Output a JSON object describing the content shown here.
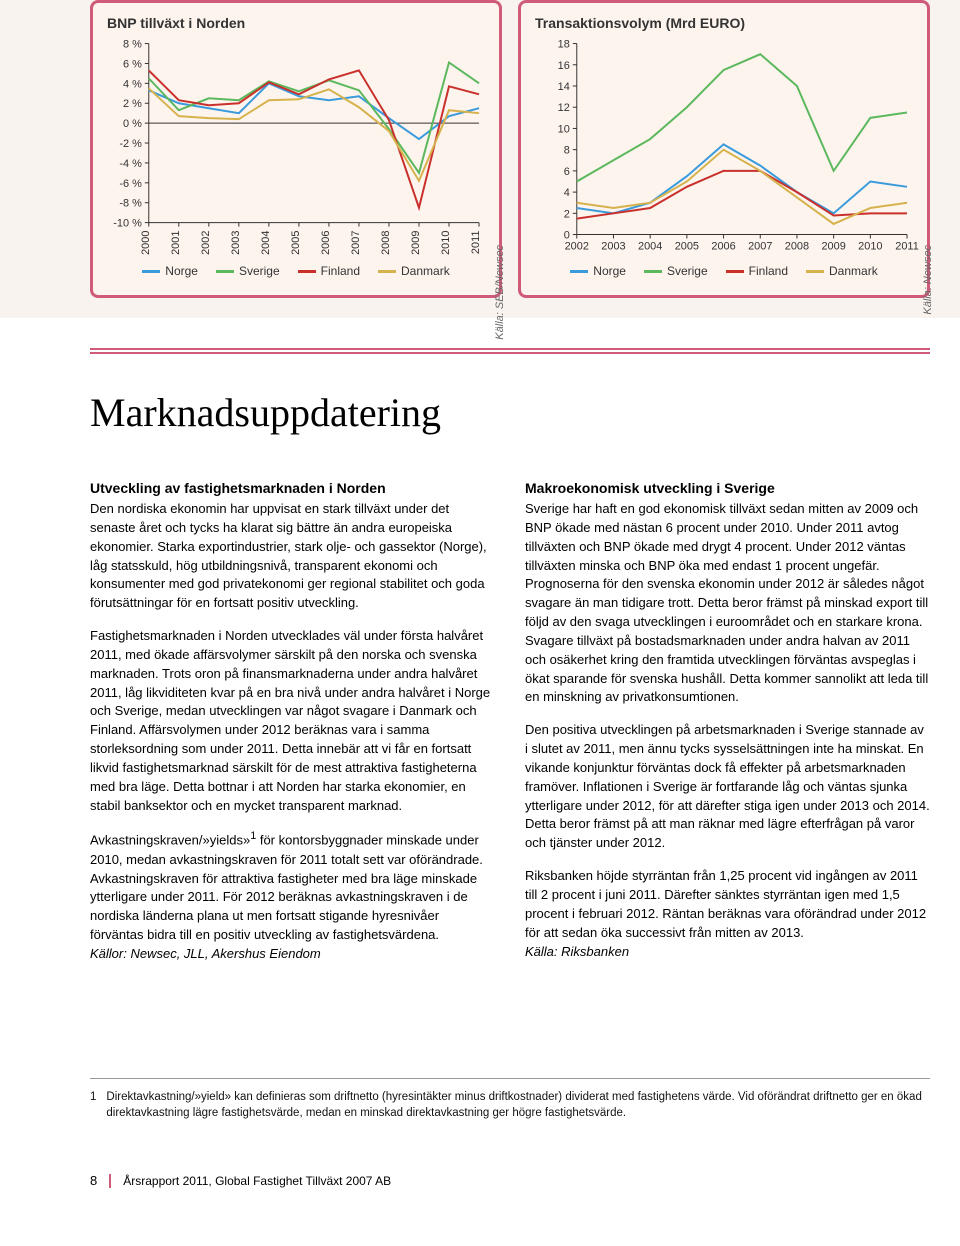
{
  "chart1": {
    "title": "BNP tillväxt i Norden",
    "type": "line",
    "source_label": "Källa: SEB/Newsec",
    "background_color": "#fdf4ee",
    "border_color": "#d05b78",
    "y": {
      "min": -10,
      "max": 8,
      "step": 2,
      "suffix": " %",
      "ticks": [
        8,
        6,
        4,
        2,
        0,
        -2,
        -4,
        -6,
        -8,
        -10
      ]
    },
    "x": {
      "labels": [
        "2000",
        "2001",
        "2002",
        "2003",
        "2004",
        "2005",
        "2006",
        "2007",
        "2008",
        "2009",
        "2010",
        "2011"
      ]
    },
    "series": [
      {
        "name": "Norge",
        "color": "#3a9bdc",
        "values": [
          3.3,
          2.0,
          1.5,
          1.0,
          4.0,
          2.7,
          2.3,
          2.7,
          0.5,
          -1.6,
          0.7,
          1.5
        ]
      },
      {
        "name": "Sverige",
        "color": "#5cb85c",
        "values": [
          4.5,
          1.3,
          2.5,
          2.3,
          4.2,
          3.2,
          4.3,
          3.3,
          -0.6,
          -5.0,
          6.1,
          4.0
        ]
      },
      {
        "name": "Finland",
        "color": "#c9302c",
        "values": [
          5.3,
          2.3,
          1.8,
          2.0,
          4.1,
          2.9,
          4.4,
          5.3,
          0.3,
          -8.5,
          3.7,
          2.9
        ]
      },
      {
        "name": "Danmark",
        "color": "#d6b24c",
        "values": [
          3.5,
          0.7,
          0.5,
          0.4,
          2.3,
          2.4,
          3.4,
          1.6,
          -0.8,
          -5.8,
          1.3,
          1.0
        ]
      }
    ],
    "grid_color": "#bfbfbf",
    "axis_fontsize": 11,
    "line_width": 2
  },
  "chart2": {
    "title": "Transaktionsvolym (Mrd EURO)",
    "type": "line",
    "source_label": "Källa: Newsec",
    "background_color": "#fdf4ee",
    "border_color": "#d05b78",
    "y": {
      "min": 0,
      "max": 18,
      "step": 2,
      "ticks": [
        18,
        16,
        14,
        12,
        10,
        8,
        6,
        4,
        2,
        0
      ]
    },
    "x": {
      "labels": [
        "2002",
        "2003",
        "2004",
        "2005",
        "2006",
        "2007",
        "2008",
        "2009",
        "2010",
        "2011"
      ]
    },
    "series": [
      {
        "name": "Norge",
        "color": "#3a9bdc",
        "values": [
          2.5,
          2.0,
          3.0,
          5.5,
          8.5,
          6.5,
          4.0,
          2.0,
          5.0,
          4.5
        ]
      },
      {
        "name": "Sverige",
        "color": "#5cb85c",
        "values": [
          5.0,
          7.0,
          9.0,
          12.0,
          15.5,
          17.0,
          14.0,
          6.0,
          11.0,
          11.5
        ]
      },
      {
        "name": "Finland",
        "color": "#c9302c",
        "values": [
          1.5,
          2.0,
          2.5,
          4.5,
          6.0,
          6.0,
          4.0,
          1.8,
          2.0,
          2.0
        ]
      },
      {
        "name": "Danmark",
        "color": "#d6b24c",
        "values": [
          3.0,
          2.5,
          3.0,
          5.0,
          8.0,
          6.0,
          3.5,
          1.0,
          2.5,
          3.0
        ]
      }
    ],
    "grid_color": "#bfbfbf",
    "axis_fontsize": 11,
    "line_width": 2
  },
  "legend_labels": [
    "Norge",
    "Sverige",
    "Finland",
    "Danmark"
  ],
  "heading": "Marknadsuppdatering",
  "left": {
    "h": "Utveckling av fastighetsmarknaden i Norden",
    "p1": "Den nordiska ekonomin har uppvisat en stark tillväxt under det senaste året och tycks ha klarat sig bättre än andra europeiska ekonomier. Starka exportindustrier, stark olje- och gassektor (Norge), låg statsskuld, hög utbildningsnivå, transparent ekonomi och konsumenter med god privatekonomi ger regional stabilitet och goda förutsättningar för en fortsatt positiv utveckling.",
    "p2": "Fastighetsmarknaden i Norden utvecklades väl under första halvåret 2011, med ökade affärsvolymer särskilt på den norska och svenska marknaden. Trots oron på finansmarknaderna under andra halvåret 2011, låg likviditeten kvar på en bra nivå under andra halvåret i Norge och Sverige, medan utvecklingen var något svagare i Danmark och Finland. Affärsvolymen under 2012 beräknas vara i samma storleksordning som under 2011. Detta innebär att vi får en fortsatt likvid fastighetsmarknad särskilt för de mest attraktiva fastigheterna med bra läge. Detta bottnar i att Norden har starka ekonomier, en stabil banksektor och en mycket transparent marknad.",
    "p3a": "Avkastningskraven/»yields»",
    "p3sup": "1",
    "p3b": " för kontorsbyggnader minskade under 2010, medan avkastningskraven för 2011 totalt sett var oförändrade. Avkastningskraven för attraktiva fastigheter med bra läge minskade ytterligare under 2011. För 2012 beräknas avkastningskraven i de nordiska länderna plana ut men fortsatt stigande hyresnivåer förväntas bidra till en positiv utveckling av fastighetsvärdena.",
    "p3src": "Källor: Newsec, JLL, Akershus Eiendom"
  },
  "right": {
    "h": "Makroekonomisk utveckling i Sverige",
    "p1": "Sverige har haft en god ekonomisk tillväxt sedan mitten av 2009 och BNP ökade med nästan 6 procent under 2010. Under 2011 avtog tillväxten och BNP ökade med drygt 4 procent. Under 2012 väntas tillväxten minska och BNP öka med endast 1 procent ungefär. Prognoserna för den svenska ekonomin under 2012 är således något svagare än man tidigare trott. Detta beror främst på minskad export till följd av den svaga utvecklingen i euroområdet och en starkare krona. Svagare tillväxt på bostadsmarknaden under andra halvan av 2011 och osäkerhet kring den framtida utvecklingen förväntas avspeglas i ökat sparande för svenska hushåll. Detta kommer sannolikt att leda till en minskning av privatkonsumtionen.",
    "p2": "Den positiva utvecklingen på arbetsmarknaden i Sverige stannade av i slutet av 2011, men ännu tycks sysselsättningen inte ha minskat. En vikande konjunktur förväntas dock få effekter på arbetsmarknaden framöver. Inflationen i Sverige är fortfarande låg och väntas sjunka ytterligare under 2012, för att därefter stiga igen under 2013 och 2014. Detta beror främst på att man räknar med lägre efterfrågan på varor och tjänster under 2012.",
    "p3": "Riksbanken höjde styrräntan från 1,25 procent vid ingången av 2011 till 2 procent i juni 2011. Därefter sänktes styrräntan igen med 1,5 procent i februari 2012. Räntan beräknas vara oförändrad under 2012 för att sedan öka successivt från mitten av 2013.",
    "p3src": "Källa: Riksbanken"
  },
  "footnote": {
    "num": "1",
    "text": "Direktavkastning/»yield» kan definieras som driftnetto (hyresintäkter minus driftkostnader) dividerat med fastighetens värde. Vid oförändrat driftnetto ger en ökad direktavkastning lägre fastighetsvärde, medan en minskad direktavkastning ger högre fastighetsvärde."
  },
  "footer": {
    "page": "8",
    "doc": "Årsrapport 2011, Global Fastighet Tillväxt 2007 AB"
  }
}
